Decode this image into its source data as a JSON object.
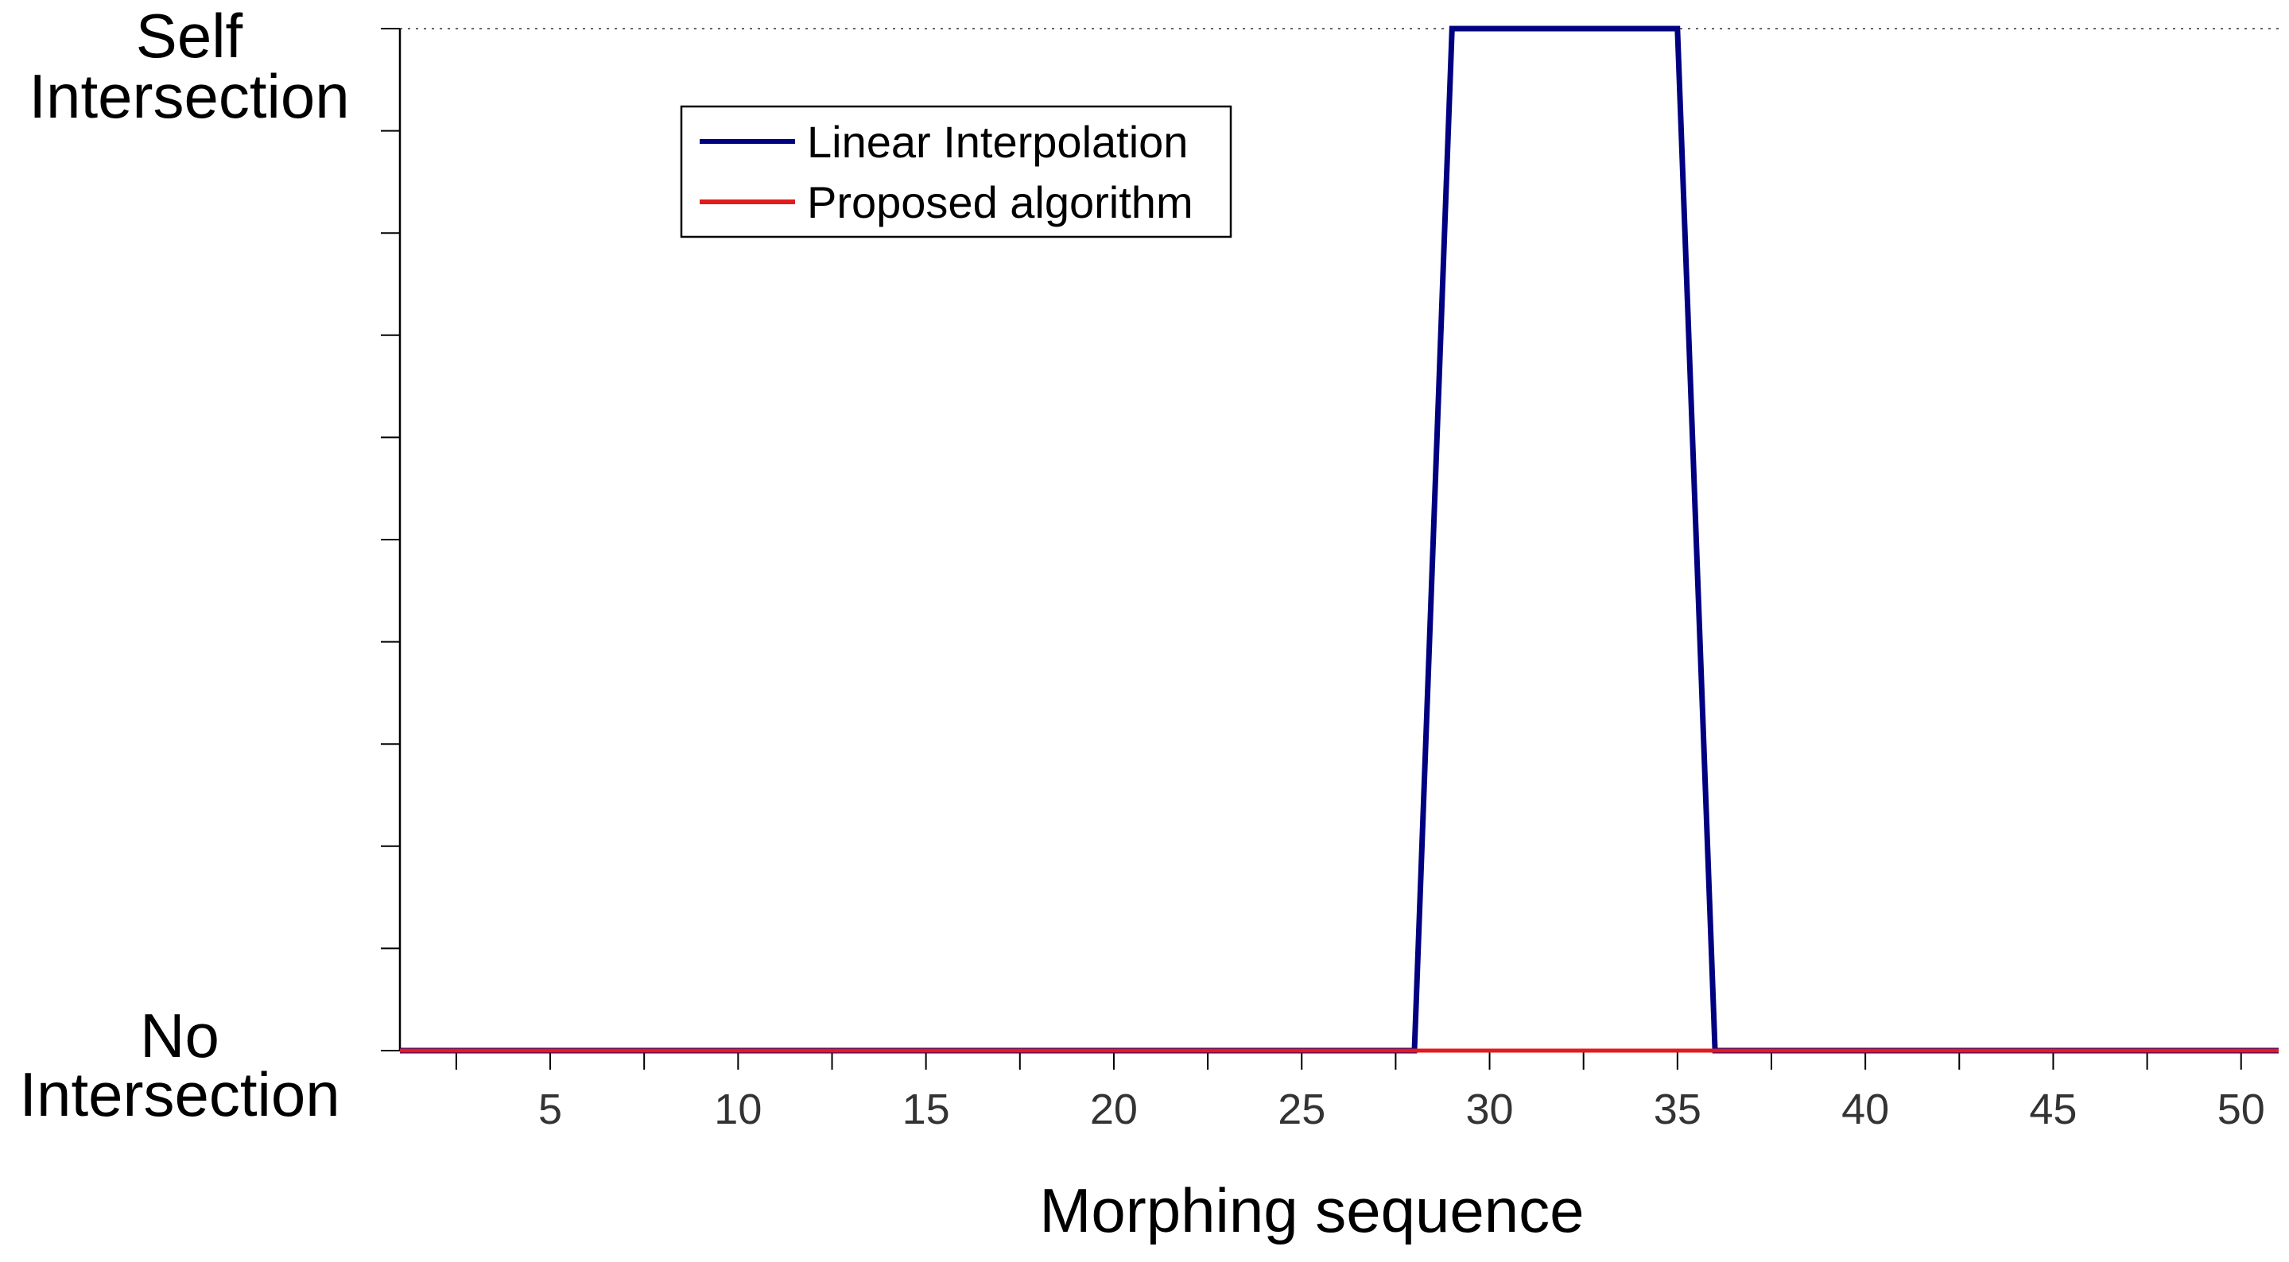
{
  "chart_data": {
    "type": "line",
    "xlabel": "Morphing sequence",
    "ylabel_top": [
      "Self",
      "Intersection"
    ],
    "ylabel_bottom": [
      "No",
      "Intersection"
    ],
    "xlim": [
      1,
      51
    ],
    "ylim": [
      0,
      1
    ],
    "x_ticks": [
      5,
      10,
      15,
      20,
      25,
      30,
      35,
      40,
      45,
      50
    ],
    "y_minor_ticks": 10,
    "top_reference": "dotted",
    "grid": false,
    "legend_position": "top-left",
    "series": [
      {
        "name": "Linear Interpolation",
        "color": "#000080",
        "x": [
          1,
          28,
          29,
          35,
          36,
          51
        ],
        "y": [
          0,
          0,
          1,
          1,
          0,
          0
        ]
      },
      {
        "name": "Proposed algorithm",
        "color": "#e31a1c",
        "x": [
          1,
          51
        ],
        "y": [
          0,
          0
        ]
      }
    ]
  }
}
